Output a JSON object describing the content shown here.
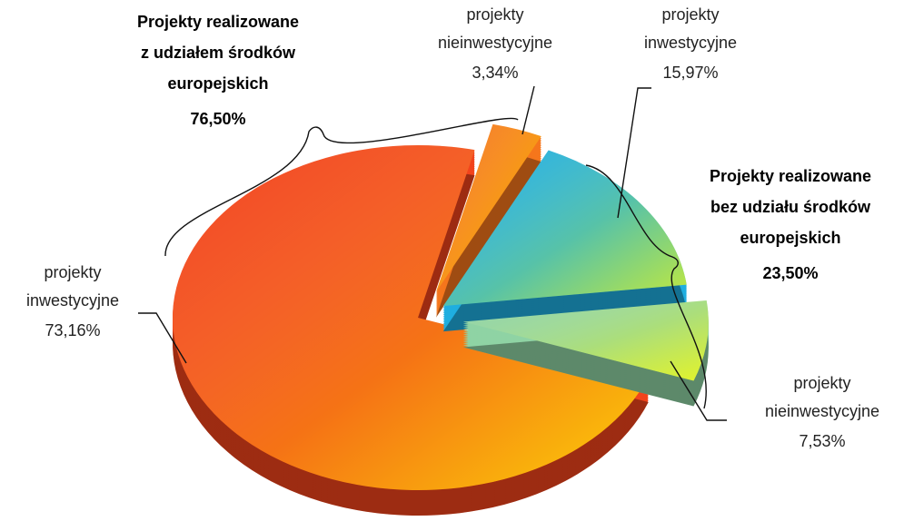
{
  "chart_data": {
    "type": "pie",
    "categories": [
      "projekty inwestycyjne",
      "projekty nieinwestycyjne",
      "projekty inwestycyjne",
      "projekty nieinwestycyjne"
    ],
    "values": [
      73.16,
      3.34,
      15.97,
      7.53
    ],
    "value_labels": [
      "73,16%",
      "3,34%",
      "15,97%",
      "7,53%"
    ],
    "colors": [
      "#f2441c",
      "#f5761c",
      "#1faee0",
      "#8fd3a4"
    ],
    "groups": [
      {
        "lines": [
          "Projekty realizowane",
          "z udziałem środków",
          "europejskich"
        ],
        "value": 76.5,
        "value_label": "76,50%"
      },
      {
        "lines": [
          "Projekty  realizowane",
          "bez udziału środków",
          "europejskich"
        ],
        "value": 23.5,
        "value_label": "23,50%"
      }
    ]
  }
}
